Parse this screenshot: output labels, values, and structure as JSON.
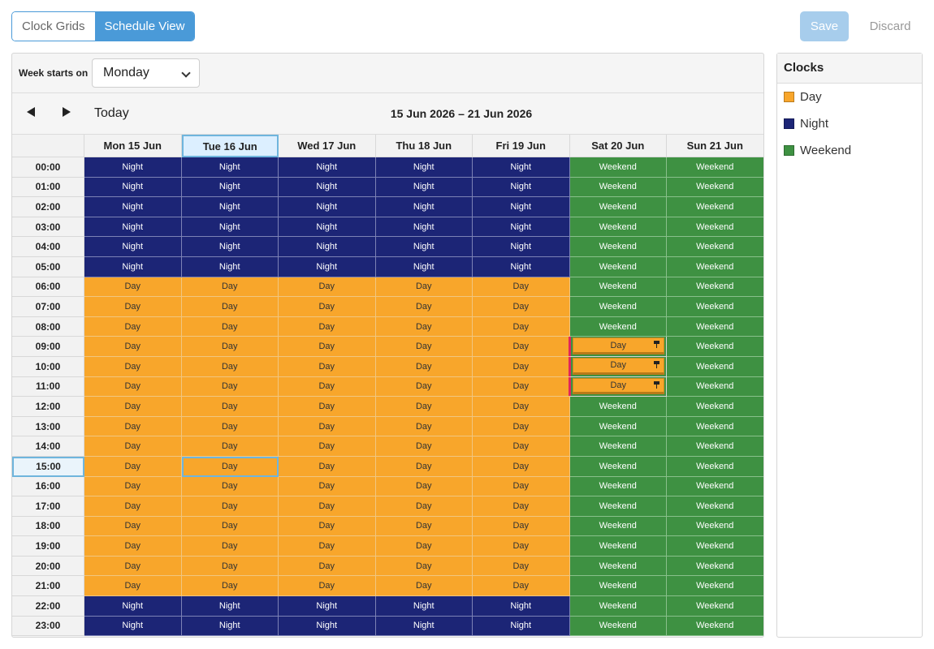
{
  "toolbar": {
    "tabs": [
      {
        "label": "Clock Grids",
        "active": false
      },
      {
        "label": "Schedule View",
        "active": true
      }
    ],
    "save_label": "Save",
    "discard_label": "Discard"
  },
  "calendar": {
    "week_starts_label": "Week starts on",
    "week_starts_value": "Monday",
    "today_label": "Today",
    "range_label": "15 Jun 2026 – 21 Jun 2026",
    "days": [
      "Mon 15 Jun",
      "Tue 16 Jun",
      "Wed 17 Jun",
      "Thu 18 Jun",
      "Fri 19 Jun",
      "Sat 20 Jun",
      "Sun 21 Jun"
    ],
    "selected_day_index": 1,
    "selected_hour_index": 15,
    "hours": [
      "00:00",
      "01:00",
      "02:00",
      "03:00",
      "04:00",
      "05:00",
      "06:00",
      "07:00",
      "08:00",
      "09:00",
      "10:00",
      "11:00",
      "12:00",
      "13:00",
      "14:00",
      "15:00",
      "16:00",
      "17:00",
      "18:00",
      "19:00",
      "20:00",
      "21:00",
      "22:00",
      "23:00"
    ],
    "weekday_pattern": [
      "Night",
      "Night",
      "Night",
      "Night",
      "Night",
      "Night",
      "Day",
      "Day",
      "Day",
      "Day",
      "Day",
      "Day",
      "Day",
      "Day",
      "Day",
      "Day",
      "Day",
      "Day",
      "Day",
      "Day",
      "Day",
      "Day",
      "Night",
      "Night"
    ],
    "weekend_value": "Weekend",
    "overrides": [
      {
        "day_index": 5,
        "hour_index": 9,
        "value": "Day",
        "pinned": true
      },
      {
        "day_index": 5,
        "hour_index": 10,
        "value": "Day",
        "pinned": true
      },
      {
        "day_index": 5,
        "hour_index": 11,
        "value": "Day",
        "pinned": true
      }
    ]
  },
  "clocks": {
    "title": "Clocks",
    "items": [
      {
        "label": "Day",
        "color": "#f8a62b"
      },
      {
        "label": "Night",
        "color": "#1c2576"
      },
      {
        "label": "Weekend",
        "color": "#3e9142"
      }
    ]
  }
}
